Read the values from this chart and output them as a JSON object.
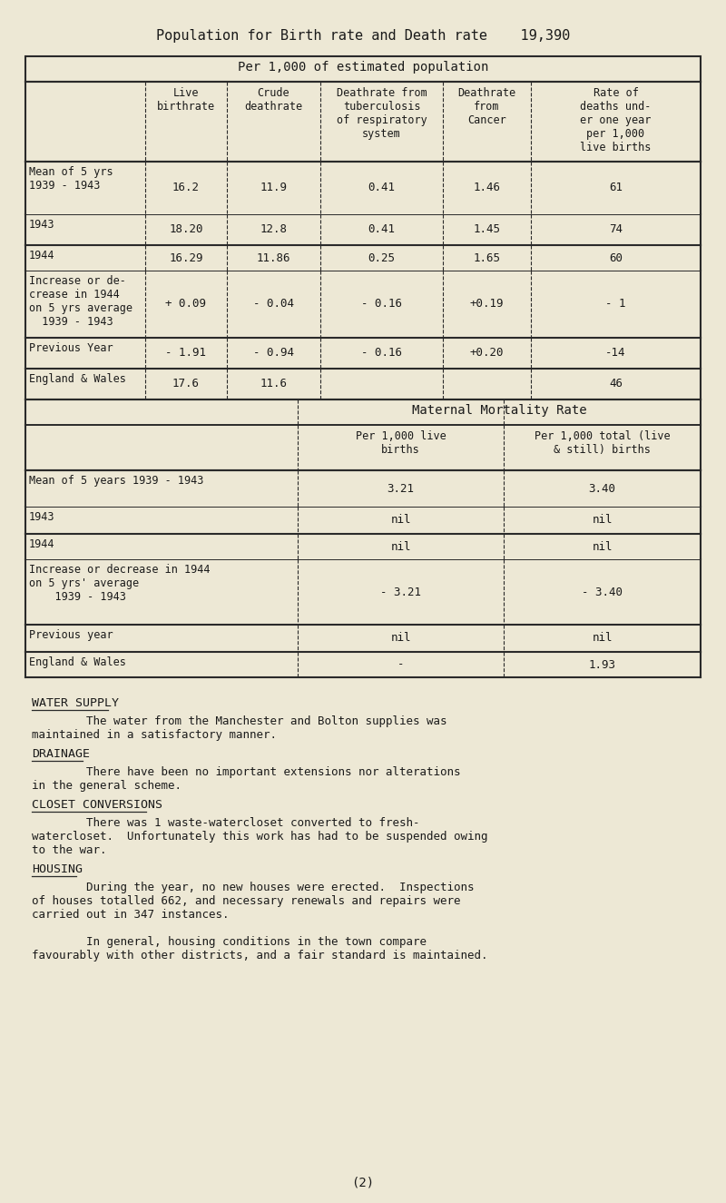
{
  "bg_color": "#ede8d5",
  "title_line": "Population for Birth rate and Death rate    19,390",
  "table1_header_main": "Per 1,000 of estimated population",
  "table1_col_headers": [
    "",
    "Live\nbirthrate",
    "Crude\ndeathrate",
    "Deathrate from\ntuberculosis\nof respiratory\nsystem",
    "Deathrate\nfrom\nCancer",
    "Rate of\ndeaths und-\ner one year\nper 1,000\nlive births"
  ],
  "table1_rows": [
    [
      "Mean of 5 yrs\n1939 - 1943",
      "16.2",
      "11.9",
      "0.41",
      "1.46",
      "61"
    ],
    [
      "1943",
      "18.20",
      "12.8",
      "0.41",
      "1.45",
      "74"
    ],
    [
      "1944",
      "16.29",
      "11.86",
      "0.25",
      "1.65",
      "60"
    ],
    [
      "Increase or de-\ncrease in 1944\non 5 yrs average\n  1939 - 1943",
      "+ 0.09",
      "- 0.04",
      "- 0.16",
      "+0.19",
      "- 1"
    ],
    [
      "Previous Year",
      "- 1.91",
      "- 0.94",
      "- 0.16",
      "+0.20",
      "-14"
    ],
    [
      "England & Wales",
      "17.6",
      "11.6",
      "",
      "",
      "46"
    ]
  ],
  "table2_header_main": "Maternal Mortality Rate",
  "table2_col_headers": [
    "",
    "Per 1,000 live\nbirths",
    "Per 1,000 total (live\n& still) births"
  ],
  "table2_rows": [
    [
      "Mean of 5 years 1939 - 1943",
      "3.21",
      "3.40"
    ],
    [
      "1943",
      "nil",
      "nil"
    ],
    [
      "1944",
      "nil",
      "nil"
    ],
    [
      "Increase or decrease in 1944\non 5 yrs' average\n    1939 - 1943",
      "- 3.21",
      "- 3.40"
    ],
    [
      "Previous year",
      "nil",
      "nil"
    ],
    [
      "England & Wales",
      "-",
      "1.93"
    ]
  ],
  "sections": [
    {
      "heading": "WATER SUPPLY",
      "text1": "        The water from the Manchester and Bolton supplies was",
      "text2": "maintained in a satisfactory manner."
    },
    {
      "heading": "DRAINAGE",
      "text1": "        There have been no important extensions nor alterations",
      "text2": "in the general scheme."
    },
    {
      "heading": "CLOSET CONVERSIONS",
      "text1": "        There was 1 waste-watercloset converted to fresh-",
      "text2": "watercloset.  Unfortunately this work has had to be suspended owing\nto the war."
    },
    {
      "heading": "HOUSING",
      "text1": "        During the year, no new houses were erected.  Inspections",
      "text2": "of houses totalled 662, and necessary renewals and repairs were\ncarried out in 347 instances.\n\n        In general, housing conditions in the town compare\nfavourably with other districts, and a fair standard is maintained."
    }
  ],
  "footer": "(2)"
}
